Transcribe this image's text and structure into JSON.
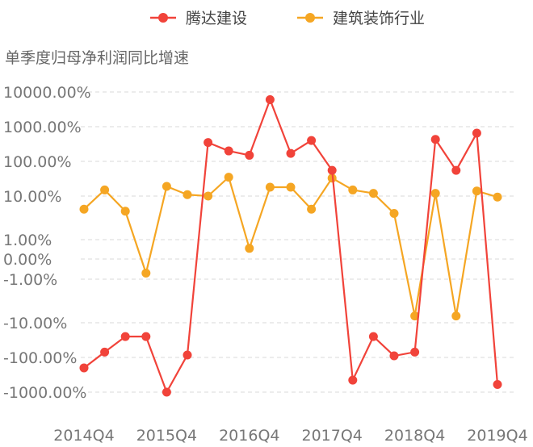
{
  "chart_data": {
    "type": "line",
    "ylabel": "单季度归母净利润同比增速",
    "y_scale": "symlog",
    "y_ticks": [
      {
        "value": 10000,
        "label": "10000.00%"
      },
      {
        "value": 1000,
        "label": "1000.00%"
      },
      {
        "value": 100,
        "label": "100.00%"
      },
      {
        "value": 10,
        "label": "10.00%"
      },
      {
        "value": 1,
        "label": "1.00%"
      },
      {
        "value": 0,
        "label": "0.00%"
      },
      {
        "value": -1,
        "label": "-1.00%"
      },
      {
        "value": -10,
        "label": "-10.00%"
      },
      {
        "value": -100,
        "label": "-100.00%"
      },
      {
        "value": -1000,
        "label": "-1000.00%"
      }
    ],
    "x_tick_labels": [
      {
        "index": 0,
        "label": "2014Q4"
      },
      {
        "index": 4,
        "label": "2015Q4"
      },
      {
        "index": 8,
        "label": "2016Q4"
      },
      {
        "index": 12,
        "label": "2017Q4"
      },
      {
        "index": 16,
        "label": "2018Q4"
      },
      {
        "index": 20,
        "label": "2019Q4"
      }
    ],
    "legend_position": "top-center",
    "grid": "horizontal-dashed",
    "series": [
      {
        "name": "腾达建设",
        "color": "#f1433a",
        "values": [
          -200,
          -70,
          -25,
          -25,
          -1000,
          -85,
          350,
          200,
          150,
          6000,
          170,
          400,
          55,
          -450,
          -25,
          -90,
          -70,
          430,
          55,
          650,
          -600
        ]
      },
      {
        "name": "建筑装饰行业",
        "color": "#f5a623",
        "values": [
          5,
          15,
          4.5,
          -0.7,
          19,
          11,
          10,
          35,
          0.55,
          18,
          18,
          5,
          33,
          15,
          12,
          4,
          -7,
          12,
          -7,
          14,
          9.5
        ]
      }
    ]
  }
}
